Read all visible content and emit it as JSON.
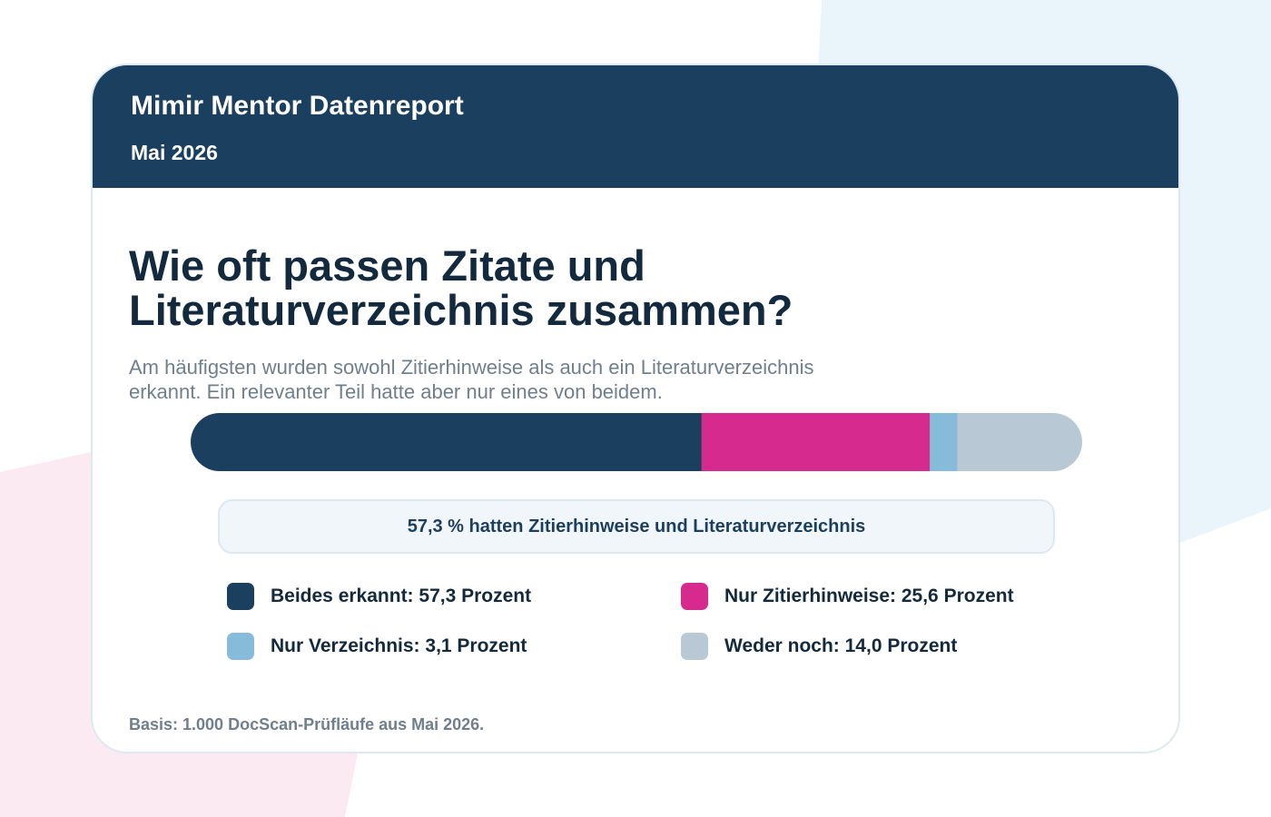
{
  "header": {
    "brand": "Mimir Mentor Datenreport",
    "period": "Mai 2026"
  },
  "headline": {
    "line1": "Wie oft passen Zitate und",
    "line2": "Literaturverzeichnis zusammen?"
  },
  "subtitle": {
    "line1": "Am häufigsten wurden sowohl Zitierhinweise als auch ein Literaturverzeichnis",
    "line2": "erkannt. Ein relevanter Teil hatte aber nur eines von beidem."
  },
  "callout": "57,3 % hatten Zitierhinweise und Literaturverzeichnis",
  "footnote": "Basis: 1.000 DocScan-Prüfläufe aus Mai 2026.",
  "chart_data": {
    "type": "bar",
    "orientation": "horizontal-stacked",
    "unit": "Prozent",
    "xlim": [
      0,
      100
    ],
    "categories": [
      "Beides erkannt",
      "Nur Zitierhinweise",
      "Nur Verzeichnis",
      "Weder noch"
    ],
    "values": [
      57.3,
      25.6,
      3.1,
      14.0
    ],
    "colors": [
      "#1b3f5f",
      "#d62a8f",
      "#86bcd9",
      "#b8c9d5"
    ],
    "legend": [
      {
        "label": "Beides erkannt: 57,3 Prozent",
        "color": "#1b3f5f"
      },
      {
        "label": "Nur Zitierhinweise: 25,6 Prozent",
        "color": "#d62a8f"
      },
      {
        "label": "Nur Verzeichnis: 3,1 Prozent",
        "color": "#86bcd9"
      },
      {
        "label": "Weder noch: 14,0 Prozent",
        "color": "#b8c9d5"
      }
    ],
    "legend_placement": "bottom"
  }
}
